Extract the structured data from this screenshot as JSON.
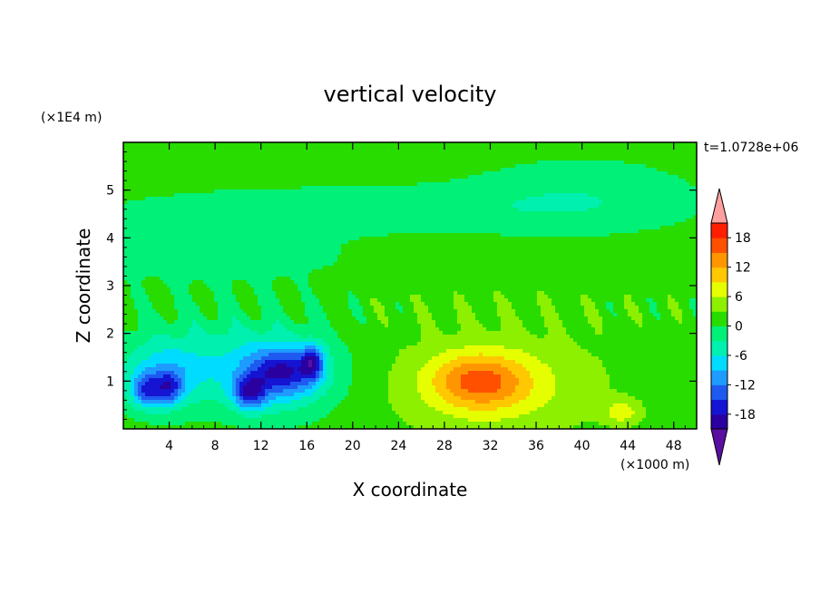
{
  "chart_data": {
    "type": "heatmap",
    "title": "vertical velocity",
    "xlabel": "X coordinate",
    "ylabel": "Z coordinate",
    "x_unit": "(×1000 m)",
    "y_unit": "(×1E4 m)",
    "time_label": "t=1.0728e+06",
    "xlim": [
      0,
      50
    ],
    "ylim": [
      0,
      6
    ],
    "x_ticks": [
      4,
      8,
      12,
      16,
      20,
      24,
      28,
      32,
      36,
      40,
      44,
      48
    ],
    "y_ticks": [
      1,
      2,
      3,
      4,
      5
    ],
    "colorbar": {
      "levels": [
        -21,
        -18,
        -15,
        -12,
        -9,
        -6,
        -3,
        0,
        3,
        6,
        9,
        12,
        15,
        18,
        21
      ],
      "tick_labels": [
        18,
        12,
        6,
        0,
        -6,
        -12,
        -18
      ],
      "colors": [
        "#5a0fa0",
        "#2a00a0",
        "#1414d2",
        "#1e5af0",
        "#1e9bff",
        "#00dcff",
        "#00f0b0",
        "#00f078",
        "#28dc00",
        "#8cf000",
        "#e6ff00",
        "#ffc800",
        "#ff9600",
        "#ff5000",
        "#ff1e00",
        "#ffa0a0"
      ],
      "extend": "both"
    },
    "features": [
      {
        "x": 2.0,
        "z": 0.8,
        "value": -11,
        "sx": 1.3,
        "sz": 0.35
      },
      {
        "x": 4.0,
        "z": 0.85,
        "value": -10,
        "sx": 1.2,
        "sz": 0.35
      },
      {
        "x": 3.5,
        "z": 1.1,
        "value": -7,
        "sx": 3.5,
        "sz": 0.7
      },
      {
        "x": 11.0,
        "z": 0.75,
        "value": -13,
        "sx": 1.4,
        "sz": 0.35
      },
      {
        "x": 14.0,
        "z": 1.2,
        "value": -11,
        "sx": 2.8,
        "sz": 0.45
      },
      {
        "x": 16.5,
        "z": 1.4,
        "value": -12,
        "sx": 1.0,
        "sz": 0.35
      },
      {
        "x": 13.5,
        "z": 1.05,
        "value": -7,
        "sx": 5.0,
        "sz": 0.8
      },
      {
        "x": 9.0,
        "z": 1.5,
        "value": -5,
        "sx": 9.0,
        "sz": 1.0
      },
      {
        "x": 31.0,
        "z": 1.0,
        "value": 10,
        "sx": 4.0,
        "sz": 0.55
      },
      {
        "x": 32.5,
        "z": 0.85,
        "value": 4,
        "sx": 7.5,
        "sz": 0.9
      },
      {
        "x": 32.0,
        "z": 1.1,
        "value": 2,
        "sx": 11.0,
        "sz": 1.4
      },
      {
        "x": 43.5,
        "z": 0.35,
        "value": 6,
        "sx": 1.5,
        "sz": 0.25
      },
      {
        "x": 20.0,
        "z": 4.6,
        "value": -3.5,
        "sx": 22.0,
        "sz": 0.5
      },
      {
        "x": 40.0,
        "z": 4.9,
        "value": -3.5,
        "sx": 10.0,
        "sz": 0.8
      },
      {
        "x": 8.0,
        "z": 3.6,
        "value": -3.2,
        "sx": 12.0,
        "sz": 0.6
      }
    ]
  }
}
